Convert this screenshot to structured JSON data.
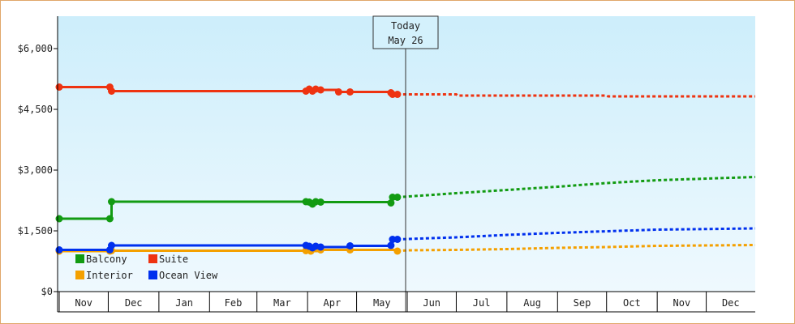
{
  "chart_data": {
    "type": "line",
    "title": "",
    "xlabel": "",
    "ylabel": "",
    "ylim": [
      0,
      6800
    ],
    "y_ticks": [
      {
        "value": 0,
        "label": "$0"
      },
      {
        "value": 1500,
        "label": "$1,500"
      },
      {
        "value": 3000,
        "label": "$3,000"
      },
      {
        "value": 4500,
        "label": "$4,500"
      },
      {
        "value": 6000,
        "label": "$6,000"
      }
    ],
    "x_range": [
      "2023-10-31",
      "2024-12-31"
    ],
    "month_ticks": [
      {
        "label": "Nov",
        "start": "2023-11-01",
        "end": "2023-12-01"
      },
      {
        "label": "Dec",
        "start": "2023-12-01",
        "end": "2024-01-01"
      },
      {
        "label": "Jan",
        "start": "2024-01-01",
        "end": "2024-02-01"
      },
      {
        "label": "Feb",
        "start": "2024-02-01",
        "end": "2024-03-01"
      },
      {
        "label": "Mar",
        "start": "2024-03-01",
        "end": "2024-04-01"
      },
      {
        "label": "Apr",
        "start": "2024-04-01",
        "end": "2024-05-01"
      },
      {
        "label": "May",
        "start": "2024-05-01",
        "end": "2024-06-01"
      },
      {
        "label": "Jun",
        "start": "2024-06-01",
        "end": "2024-07-01"
      },
      {
        "label": "Jul",
        "start": "2024-07-01",
        "end": "2024-08-01"
      },
      {
        "label": "Aug",
        "start": "2024-08-01",
        "end": "2024-09-01"
      },
      {
        "label": "Sep",
        "start": "2024-09-01",
        "end": "2024-10-01"
      },
      {
        "label": "Oct",
        "start": "2024-10-01",
        "end": "2024-11-01"
      },
      {
        "label": "Nov",
        "start": "2024-11-01",
        "end": "2024-12-01"
      },
      {
        "label": "Dec",
        "start": "2024-12-01",
        "end": "2024-12-31"
      }
    ],
    "today": {
      "date": "2024-05-26",
      "label_line1": "Today",
      "label_line2": "May 26"
    },
    "grid": false,
    "legend_position": "bottom-left",
    "series": [
      {
        "name": "Balcony",
        "color": "#129b12",
        "history": [
          [
            "2023-11-01",
            1800
          ],
          [
            "2023-12-02",
            1800
          ],
          [
            "2023-12-03",
            2220
          ],
          [
            "2024-03-31",
            2220
          ],
          [
            "2024-04-02",
            2210
          ],
          [
            "2024-04-04",
            2160
          ],
          [
            "2024-04-06",
            2220
          ],
          [
            "2024-04-09",
            2210
          ],
          [
            "2024-05-22",
            2190
          ],
          [
            "2024-05-23",
            2330
          ],
          [
            "2024-05-26",
            2330
          ]
        ],
        "forecast": [
          [
            "2024-05-26",
            2330
          ],
          [
            "2024-07-01",
            2430
          ],
          [
            "2024-08-01",
            2510
          ],
          [
            "2024-09-01",
            2590
          ],
          [
            "2024-10-01",
            2680
          ],
          [
            "2024-11-01",
            2750
          ],
          [
            "2024-12-31",
            2830
          ]
        ]
      },
      {
        "name": "Suite",
        "color": "#ee3311",
        "history": [
          [
            "2023-11-01",
            5050
          ],
          [
            "2023-12-02",
            5050
          ],
          [
            "2023-12-03",
            4950
          ],
          [
            "2024-03-31",
            4950
          ],
          [
            "2024-04-02",
            5000
          ],
          [
            "2024-04-04",
            4950
          ],
          [
            "2024-04-06",
            5000
          ],
          [
            "2024-04-09",
            4980
          ],
          [
            "2024-04-20",
            4930
          ],
          [
            "2024-04-27",
            4930
          ],
          [
            "2024-05-22",
            4910
          ],
          [
            "2024-05-23",
            4870
          ],
          [
            "2024-05-26",
            4870
          ]
        ],
        "forecast": [
          [
            "2024-05-26",
            4870
          ],
          [
            "2024-07-01",
            4870
          ],
          [
            "2024-07-02",
            4840
          ],
          [
            "2024-10-01",
            4840
          ],
          [
            "2024-10-02",
            4820
          ],
          [
            "2024-12-31",
            4820
          ]
        ]
      },
      {
        "name": "Interior",
        "color": "#f4a000",
        "history": [
          [
            "2023-11-01",
            1000
          ],
          [
            "2023-12-02",
            1000
          ],
          [
            "2023-12-03",
            1010
          ],
          [
            "2024-03-31",
            1010
          ],
          [
            "2024-04-03",
            1000
          ],
          [
            "2024-04-09",
            1030
          ],
          [
            "2024-04-27",
            1030
          ],
          [
            "2024-05-26",
            1000
          ]
        ],
        "forecast": [
          [
            "2024-05-26",
            1000
          ],
          [
            "2024-06-01",
            1020
          ],
          [
            "2024-07-01",
            1030
          ],
          [
            "2024-08-01",
            1050
          ],
          [
            "2024-09-01",
            1080
          ],
          [
            "2024-10-01",
            1100
          ],
          [
            "2024-11-01",
            1130
          ],
          [
            "2024-12-31",
            1150
          ]
        ]
      },
      {
        "name": "Ocean View",
        "color": "#0030ee",
        "history": [
          [
            "2023-11-01",
            1030
          ],
          [
            "2023-12-02",
            1030
          ],
          [
            "2023-12-03",
            1140
          ],
          [
            "2024-03-31",
            1140
          ],
          [
            "2024-04-02",
            1120
          ],
          [
            "2024-04-04",
            1080
          ],
          [
            "2024-04-06",
            1120
          ],
          [
            "2024-04-09",
            1100
          ],
          [
            "2024-04-27",
            1130
          ],
          [
            "2024-05-22",
            1140
          ],
          [
            "2024-05-23",
            1290
          ],
          [
            "2024-05-26",
            1290
          ]
        ],
        "forecast": [
          [
            "2024-05-26",
            1290
          ],
          [
            "2024-07-01",
            1340
          ],
          [
            "2024-08-01",
            1400
          ],
          [
            "2024-09-01",
            1450
          ],
          [
            "2024-10-01",
            1490
          ],
          [
            "2024-11-01",
            1530
          ],
          [
            "2024-12-31",
            1560
          ]
        ]
      }
    ]
  }
}
